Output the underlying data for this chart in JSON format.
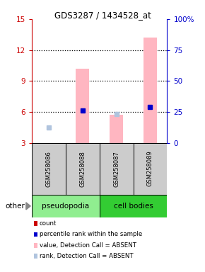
{
  "title": "GDS3287 / 1434528_at",
  "samples": [
    "GSM258086",
    "GSM258088",
    "GSM258087",
    "GSM258089"
  ],
  "ylim_left": [
    3,
    15
  ],
  "ylim_right": [
    0,
    100
  ],
  "yticks_left": [
    3,
    6,
    9,
    12,
    15
  ],
  "yticks_right": [
    0,
    25,
    50,
    75,
    100
  ],
  "yticklabels_right": [
    "0",
    "25",
    "50",
    "75",
    "100%"
  ],
  "pink_bars": [
    null,
    [
      3.0,
      10.2
    ],
    [
      3.0,
      5.7
    ],
    [
      3.0,
      13.2
    ]
  ],
  "blue_squares": [
    4.5,
    6.1,
    5.8,
    6.5
  ],
  "blue_square_absent": [
    true,
    false,
    true,
    false
  ],
  "left_axis_color": "#CC0000",
  "right_axis_color": "#0000CC",
  "bar_width": 0.4,
  "group_spans": [
    {
      "label": "pseudopodia",
      "start": 0,
      "end": 2,
      "color": "#90EE90"
    },
    {
      "label": "cell bodies",
      "start": 2,
      "end": 4,
      "color": "#33CC33"
    }
  ],
  "legend_items": [
    {
      "label": "count",
      "color": "#CC0000"
    },
    {
      "label": "percentile rank within the sample",
      "color": "#0000CC"
    },
    {
      "label": "value, Detection Call = ABSENT",
      "color": "#FFB6C1"
    },
    {
      "label": "rank, Detection Call = ABSENT",
      "color": "#B0C4DE"
    }
  ]
}
